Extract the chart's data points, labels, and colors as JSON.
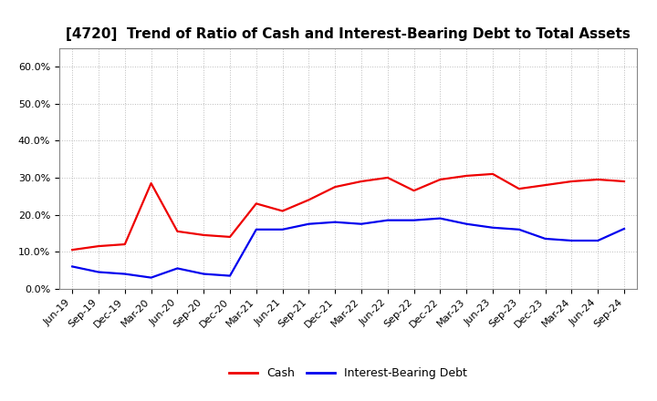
{
  "title": "[4720]  Trend of Ratio of Cash and Interest-Bearing Debt to Total Assets",
  "x_labels": [
    "Jun-19",
    "Sep-19",
    "Dec-19",
    "Mar-20",
    "Jun-20",
    "Sep-20",
    "Dec-20",
    "Mar-21",
    "Jun-21",
    "Sep-21",
    "Dec-21",
    "Mar-22",
    "Jun-22",
    "Sep-22",
    "Dec-22",
    "Mar-23",
    "Jun-23",
    "Sep-23",
    "Dec-23",
    "Mar-24",
    "Jun-24",
    "Sep-24"
  ],
  "cash": [
    0.105,
    0.115,
    0.12,
    0.285,
    0.155,
    0.145,
    0.14,
    0.23,
    0.21,
    0.24,
    0.275,
    0.29,
    0.3,
    0.265,
    0.295,
    0.305,
    0.31,
    0.27,
    0.28,
    0.29,
    0.295,
    0.29
  ],
  "ibd": [
    0.06,
    0.045,
    0.04,
    0.03,
    0.055,
    0.04,
    0.035,
    0.16,
    0.16,
    0.175,
    0.18,
    0.175,
    0.185,
    0.185,
    0.19,
    0.175,
    0.165,
    0.16,
    0.135,
    0.13,
    0.13,
    0.162
  ],
  "cash_color": "#EE0000",
  "ibd_color": "#0000EE",
  "ylim": [
    0.0,
    0.65
  ],
  "yticks": [
    0.0,
    0.1,
    0.2,
    0.3,
    0.4,
    0.5,
    0.6
  ],
  "background_color": "#FFFFFF",
  "plot_bg_color": "#FFFFFF",
  "grid_color": "#BBBBBB",
  "title_fontsize": 11,
  "tick_fontsize": 8,
  "legend_labels": [
    "Cash",
    "Interest-Bearing Debt"
  ]
}
